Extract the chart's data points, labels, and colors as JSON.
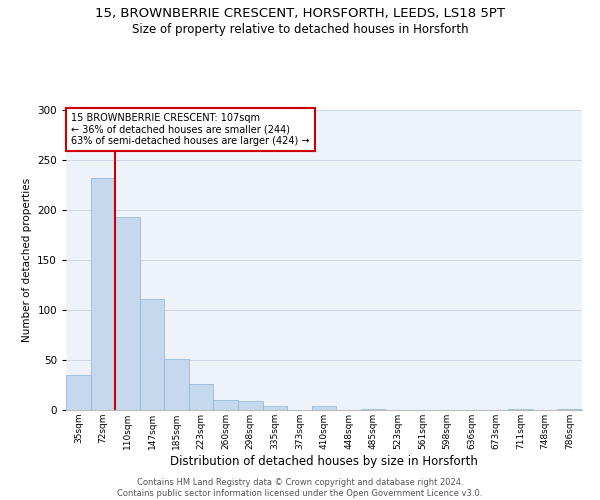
{
  "title1": "15, BROWNBERRIE CRESCENT, HORSFORTH, LEEDS, LS18 5PT",
  "title2": "Size of property relative to detached houses in Horsforth",
  "xlabel": "Distribution of detached houses by size in Horsforth",
  "ylabel": "Number of detached properties",
  "annotation_line1": "15 BROWNBERRIE CRESCENT: 107sqm",
  "annotation_line2": "← 36% of detached houses are smaller (244)",
  "annotation_line3": "63% of semi-detached houses are larger (424) →",
  "footer1": "Contains HM Land Registry data © Crown copyright and database right 2024.",
  "footer2": "Contains public sector information licensed under the Open Government Licence v3.0.",
  "bin_labels": [
    "35sqm",
    "72sqm",
    "110sqm",
    "147sqm",
    "185sqm",
    "223sqm",
    "260sqm",
    "298sqm",
    "335sqm",
    "373sqm",
    "410sqm",
    "448sqm",
    "485sqm",
    "523sqm",
    "561sqm",
    "598sqm",
    "636sqm",
    "673sqm",
    "711sqm",
    "748sqm",
    "786sqm"
  ],
  "bar_values": [
    35,
    232,
    193,
    111,
    51,
    26,
    10,
    9,
    4,
    0,
    4,
    0,
    1,
    0,
    0,
    0,
    0,
    0,
    1,
    0,
    1
  ],
  "bar_color": "#c5d8ed",
  "bar_edge_color": "#8ab4d4",
  "vline_color": "#cc0000",
  "annotation_box_color": "#ffffff",
  "annotation_box_edge_color": "#cc0000",
  "ylim": [
    0,
    300
  ],
  "yticks": [
    0,
    50,
    100,
    150,
    200,
    250,
    300
  ],
  "grid_color": "#d0d8e8",
  "bg_color": "#eef2f9",
  "title1_fontsize": 9.5,
  "title2_fontsize": 8.5
}
